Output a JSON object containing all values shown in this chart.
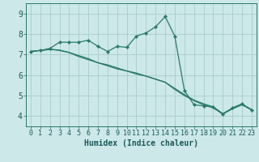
{
  "xlabel": "Humidex (Indice chaleur)",
  "background_color": "#cce8e8",
  "grid_color": "#aacccc",
  "line_color": "#2a7a6a",
  "xlim": [
    -0.5,
    23.5
  ],
  "ylim": [
    3.5,
    9.5
  ],
  "xticks": [
    0,
    1,
    2,
    3,
    4,
    5,
    6,
    7,
    8,
    9,
    10,
    11,
    12,
    13,
    14,
    15,
    16,
    17,
    18,
    19,
    20,
    21,
    22,
    23
  ],
  "yticks": [
    4,
    5,
    6,
    7,
    8,
    9
  ],
  "series1_x": [
    0,
    1,
    2,
    3,
    4,
    5,
    6,
    7,
    8,
    9,
    10,
    11,
    12,
    13,
    14,
    15,
    16,
    17,
    18,
    19,
    20,
    21,
    22,
    23
  ],
  "series1_y": [
    7.15,
    7.2,
    7.3,
    7.6,
    7.6,
    7.6,
    7.7,
    7.4,
    7.15,
    7.4,
    7.35,
    7.9,
    8.05,
    8.35,
    8.85,
    7.9,
    5.25,
    4.55,
    4.5,
    4.45,
    4.1,
    4.4,
    4.6,
    4.3
  ],
  "series2_x": [
    0,
    1,
    2,
    3,
    4,
    5,
    6,
    7,
    8,
    9,
    10,
    11,
    12,
    13,
    14,
    15,
    16,
    17,
    18,
    19,
    20,
    21,
    22,
    23
  ],
  "series2_y": [
    7.15,
    7.2,
    7.25,
    7.2,
    7.1,
    6.9,
    6.75,
    6.6,
    6.45,
    6.3,
    6.2,
    6.1,
    5.95,
    5.8,
    5.65,
    5.3,
    5.0,
    4.75,
    4.55,
    4.4,
    4.1,
    4.35,
    4.55,
    4.3
  ],
  "series3_x": [
    0,
    1,
    2,
    3,
    4,
    5,
    6,
    7,
    8,
    9,
    10,
    11,
    12,
    13,
    14,
    15,
    16,
    17,
    18,
    19,
    20,
    21,
    22,
    23
  ],
  "series3_y": [
    7.15,
    7.2,
    7.25,
    7.22,
    7.1,
    6.95,
    6.8,
    6.6,
    6.5,
    6.35,
    6.2,
    6.05,
    5.95,
    5.8,
    5.65,
    5.35,
    5.05,
    4.78,
    4.6,
    4.45,
    4.12,
    4.38,
    4.58,
    4.32
  ],
  "xlabel_fontsize": 7,
  "tick_fontsize": 6,
  "ytick_fontsize": 7
}
